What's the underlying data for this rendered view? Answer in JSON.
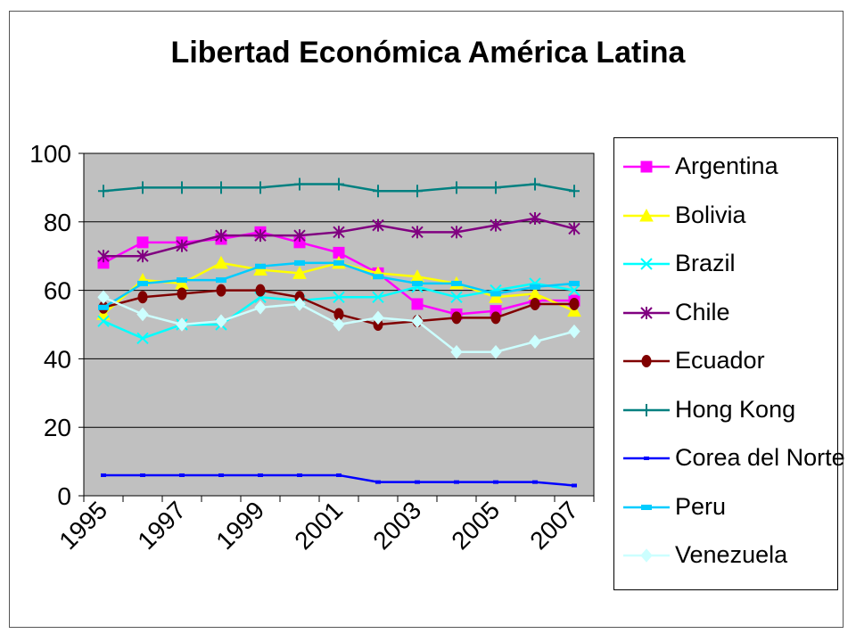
{
  "chart_data": {
    "type": "line",
    "title": "Libertad Económica América Latina",
    "categories": [
      "1995",
      "1996",
      "1997",
      "1998",
      "1999",
      "2000",
      "2001",
      "2002",
      "2003",
      "2004",
      "2005",
      "2006",
      "2007"
    ],
    "x_tick_labels": [
      "1995",
      "1997",
      "1999",
      "2001",
      "2003",
      "2005",
      "2007"
    ],
    "ylim": [
      0,
      100
    ],
    "y_ticks": [
      "0",
      "20",
      "40",
      "60",
      "80",
      "100"
    ],
    "grid": true,
    "legend_position": "right",
    "plot_background": "#c0c0c0",
    "series": [
      {
        "name": "Argentina",
        "color": "#ff00ff",
        "marker": "square",
        "values": [
          68,
          74,
          74,
          75,
          77,
          74,
          71,
          65,
          56,
          53,
          54,
          57,
          57
        ]
      },
      {
        "name": "Bolivia",
        "color": "#ffff00",
        "marker": "triangle",
        "values": [
          53,
          63,
          62,
          68,
          66,
          65,
          68,
          65,
          64,
          62,
          58,
          59,
          54
        ]
      },
      {
        "name": "Brazil",
        "color": "#00ffff",
        "marker": "x",
        "values": [
          51,
          46,
          50,
          50,
          58,
          57,
          58,
          58,
          61,
          58,
          60,
          62,
          60
        ]
      },
      {
        "name": "Chile",
        "color": "#800080",
        "marker": "star",
        "values": [
          70,
          70,
          73,
          76,
          76,
          76,
          77,
          79,
          77,
          77,
          79,
          81,
          78
        ]
      },
      {
        "name": "Ecuador",
        "color": "#800000",
        "marker": "circle",
        "values": [
          55,
          58,
          59,
          60,
          60,
          58,
          53,
          50,
          51,
          52,
          52,
          56,
          56
        ]
      },
      {
        "name": "Hong Kong",
        "color": "#008080",
        "marker": "plus",
        "values": [
          89,
          90,
          90,
          90,
          90,
          91,
          91,
          89,
          89,
          90,
          90,
          91,
          89
        ]
      },
      {
        "name": "Corea del Norte",
        "color": "#0000ff",
        "marker": "dot",
        "values": [
          6,
          6,
          6,
          6,
          6,
          6,
          6,
          4,
          4,
          4,
          4,
          4,
          3
        ]
      },
      {
        "name": "Peru",
        "color": "#00ccff",
        "marker": "bar",
        "values": [
          55,
          62,
          63,
          63,
          67,
          68,
          68,
          64,
          62,
          62,
          59,
          61,
          62
        ]
      },
      {
        "name": "Venezuela",
        "color": "#ccffff",
        "marker": "diamond",
        "values": [
          58,
          53,
          50,
          51,
          55,
          56,
          50,
          52,
          51,
          42,
          42,
          45,
          48
        ]
      }
    ]
  }
}
